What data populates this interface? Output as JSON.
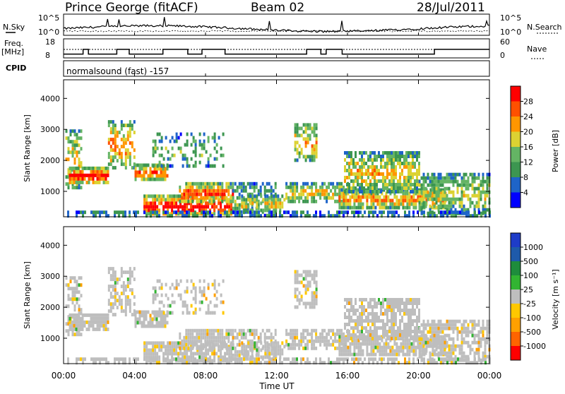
{
  "header": {
    "station": "Prince George (fitACF)",
    "beam": "Beam 02",
    "date": "28/Jul/2011"
  },
  "colors": {
    "power": [
      "#0000ff",
      "#1e64c8",
      "#3c9650",
      "#64b464",
      "#dcd232",
      "#ff9600",
      "#ff5000",
      "#ff0000"
    ],
    "velocity": [
      "#ff0000",
      "#ff6400",
      "#ffa000",
      "#ffc800",
      "#bebebe",
      "#32b432",
      "#1e8c3c",
      "#1e5aaa",
      "#1e3cc8"
    ]
  },
  "chart_data": [
    {
      "type": "line",
      "panel": "N.Sky / N.Search",
      "left_label": "N.Sky",
      "right_label": "N.Search",
      "left_ticks": [
        "10^5",
        "10^0"
      ],
      "right_ticks": [
        "10^5",
        "10^0"
      ]
    },
    {
      "type": "line",
      "panel": "Freq / Nave",
      "left_label": "Freq.",
      "left_unit": "[MHz]",
      "right_label": "Nave",
      "left_ticks": [
        "18",
        "8"
      ],
      "right_ticks": [
        "60",
        "0"
      ],
      "freq_steps": [
        [
          0,
          10
        ],
        [
          0.1,
          10
        ],
        [
          1.1,
          12.5
        ],
        [
          1.4,
          10
        ],
        [
          3.0,
          12.5
        ],
        [
          3.7,
          10
        ],
        [
          5.6,
          12.5
        ],
        [
          7.0,
          10
        ],
        [
          7.8,
          12.5
        ],
        [
          9.1,
          10
        ],
        [
          13.7,
          12.5
        ],
        [
          14.5,
          10
        ],
        [
          14.8,
          12.5
        ],
        [
          15.7,
          10
        ],
        [
          20.9,
          12.5
        ],
        [
          24,
          12.5
        ]
      ],
      "nave_level": 0.45
    },
    {
      "type": "text",
      "panel": "CPID",
      "label": "CPID",
      "value": "normalsound (fast) -157"
    },
    {
      "type": "heatmap",
      "panel": "Power",
      "ylabel": "Slant Range [km]",
      "yticks": [
        1000,
        2000,
        3000,
        4000
      ],
      "ylim": [
        180,
        4600
      ],
      "colorbar_label": "Power [dB]",
      "colorbar_ticks": [
        4,
        8,
        12,
        16,
        20,
        24,
        28
      ]
    },
    {
      "type": "heatmap",
      "panel": "Velocity",
      "ylabel": "Slant Range [km]",
      "yticks": [
        1000,
        2000,
        3000,
        4000
      ],
      "ylim": [
        180,
        4600
      ],
      "colorbar_label": "Velocity [m s⁻¹]",
      "colorbar_ticks": [
        1000,
        500,
        100,
        25,
        -25,
        -100,
        -500,
        -1000
      ]
    }
  ],
  "xaxis": {
    "ticks": [
      "00:00",
      "04:00",
      "08:00",
      "12:00",
      "16:00",
      "20:00",
      "00:00"
    ],
    "label": "Time UT"
  }
}
